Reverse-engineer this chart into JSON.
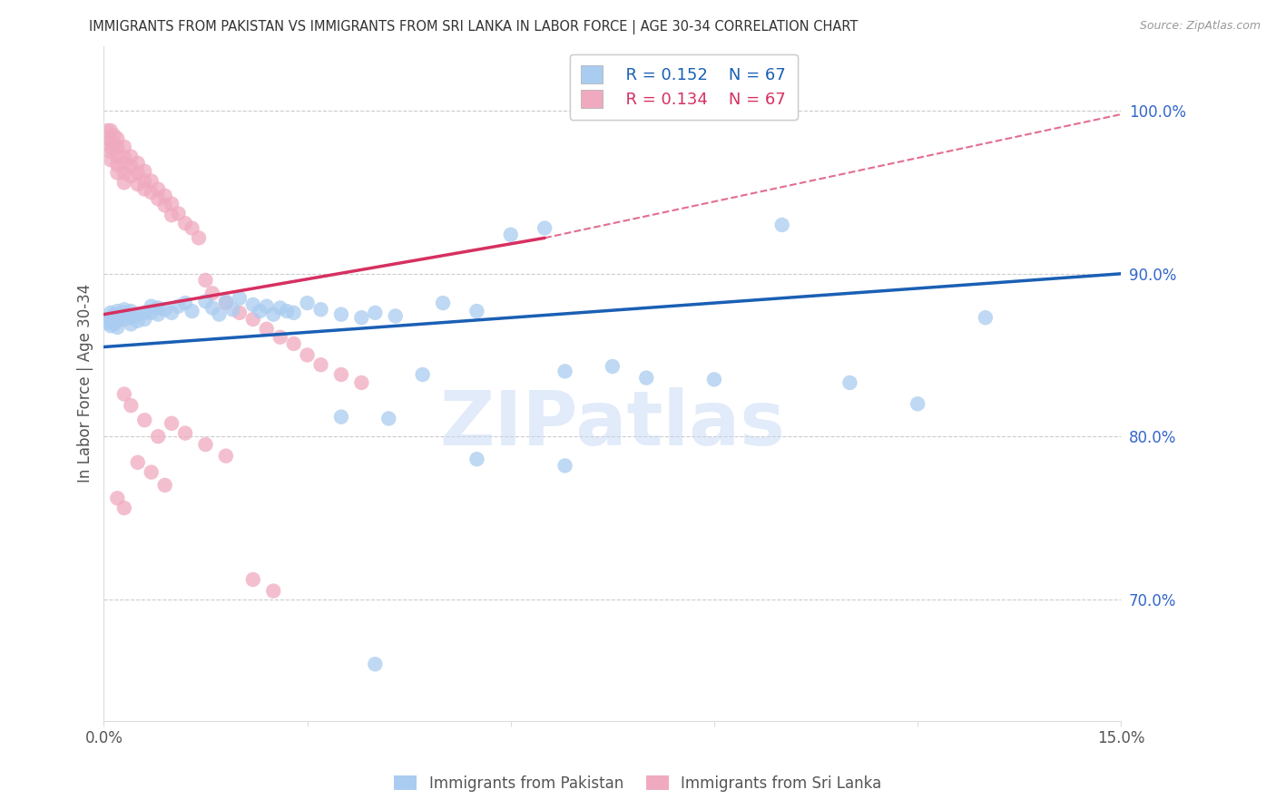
{
  "title": "IMMIGRANTS FROM PAKISTAN VS IMMIGRANTS FROM SRI LANKA IN LABOR FORCE | AGE 30-34 CORRELATION CHART",
  "source": "Source: ZipAtlas.com",
  "ylabel": "In Labor Force | Age 30-34",
  "xlim": [
    0.0,
    0.15
  ],
  "ylim": [
    0.625,
    1.04
  ],
  "legend_r_pakistan": "0.152",
  "legend_n_pakistan": "67",
  "legend_r_srilanka": "0.134",
  "legend_n_srilanka": "67",
  "pakistan_color": "#aaccf0",
  "srilanka_color": "#f0aabf",
  "pakistan_line_color": "#1a5fb4",
  "srilanka_line_color": "#d63060",
  "watermark": "ZIPatlas",
  "pk_x": [
    0.0005,
    0.001,
    0.001,
    0.001,
    0.0015,
    0.0015,
    0.002,
    0.002,
    0.002,
    0.002,
    0.003,
    0.003,
    0.003,
    0.003,
    0.004,
    0.004,
    0.004,
    0.005,
    0.005,
    0.006,
    0.006,
    0.007,
    0.007,
    0.008,
    0.008,
    0.009,
    0.01,
    0.011,
    0.012,
    0.013,
    0.015,
    0.016,
    0.017,
    0.018,
    0.019,
    0.02,
    0.022,
    0.023,
    0.024,
    0.025,
    0.026,
    0.027,
    0.028,
    0.03,
    0.032,
    0.035,
    0.038,
    0.04,
    0.043,
    0.047,
    0.05,
    0.055,
    0.06,
    0.065,
    0.068,
    0.075,
    0.08,
    0.09,
    0.1,
    0.11,
    0.12,
    0.13,
    0.035,
    0.042,
    0.055,
    0.068,
    0.04
  ],
  "pk_y": [
    0.87,
    0.872,
    0.876,
    0.868,
    0.875,
    0.869,
    0.873,
    0.877,
    0.871,
    0.867,
    0.876,
    0.874,
    0.878,
    0.872,
    0.877,
    0.873,
    0.869,
    0.875,
    0.871,
    0.876,
    0.872,
    0.876,
    0.88,
    0.875,
    0.879,
    0.878,
    0.876,
    0.88,
    0.882,
    0.877,
    0.883,
    0.879,
    0.875,
    0.883,
    0.878,
    0.885,
    0.881,
    0.877,
    0.88,
    0.875,
    0.879,
    0.877,
    0.876,
    0.882,
    0.878,
    0.875,
    0.873,
    0.876,
    0.874,
    0.838,
    0.882,
    0.877,
    0.924,
    0.928,
    0.84,
    0.843,
    0.836,
    0.835,
    0.93,
    0.833,
    0.82,
    0.873,
    0.812,
    0.811,
    0.786,
    0.782,
    0.66
  ],
  "sl_x": [
    0.0005,
    0.0005,
    0.001,
    0.001,
    0.001,
    0.001,
    0.001,
    0.0015,
    0.0015,
    0.002,
    0.002,
    0.002,
    0.002,
    0.002,
    0.003,
    0.003,
    0.003,
    0.003,
    0.003,
    0.004,
    0.004,
    0.004,
    0.005,
    0.005,
    0.005,
    0.006,
    0.006,
    0.006,
    0.007,
    0.007,
    0.008,
    0.008,
    0.009,
    0.009,
    0.01,
    0.01,
    0.011,
    0.012,
    0.013,
    0.014,
    0.015,
    0.016,
    0.018,
    0.02,
    0.022,
    0.024,
    0.026,
    0.028,
    0.03,
    0.032,
    0.035,
    0.038,
    0.01,
    0.012,
    0.015,
    0.018,
    0.006,
    0.008,
    0.003,
    0.004,
    0.002,
    0.003,
    0.005,
    0.007,
    0.009,
    0.022,
    0.025
  ],
  "sl_y": [
    0.988,
    0.983,
    0.988,
    0.982,
    0.978,
    0.975,
    0.97,
    0.985,
    0.978,
    0.983,
    0.978,
    0.972,
    0.967,
    0.962,
    0.978,
    0.972,
    0.968,
    0.962,
    0.956,
    0.972,
    0.966,
    0.96,
    0.968,
    0.962,
    0.955,
    0.963,
    0.957,
    0.952,
    0.957,
    0.95,
    0.952,
    0.946,
    0.948,
    0.942,
    0.943,
    0.936,
    0.937,
    0.931,
    0.928,
    0.922,
    0.896,
    0.888,
    0.882,
    0.876,
    0.872,
    0.866,
    0.861,
    0.857,
    0.85,
    0.844,
    0.838,
    0.833,
    0.808,
    0.802,
    0.795,
    0.788,
    0.81,
    0.8,
    0.826,
    0.819,
    0.762,
    0.756,
    0.784,
    0.778,
    0.77,
    0.712,
    0.705
  ],
  "pk_line_x0": 0.0,
  "pk_line_x1": 0.15,
  "pk_line_y0": 0.855,
  "pk_line_y1": 0.9,
  "sl_line_solid_x0": 0.0,
  "sl_line_solid_x1": 0.065,
  "sl_line_solid_y0": 0.875,
  "sl_line_solid_y1": 0.922,
  "sl_line_dash_x0": 0.065,
  "sl_line_dash_x1": 0.15,
  "sl_line_dash_y0": 0.922,
  "sl_line_dash_y1": 0.998
}
